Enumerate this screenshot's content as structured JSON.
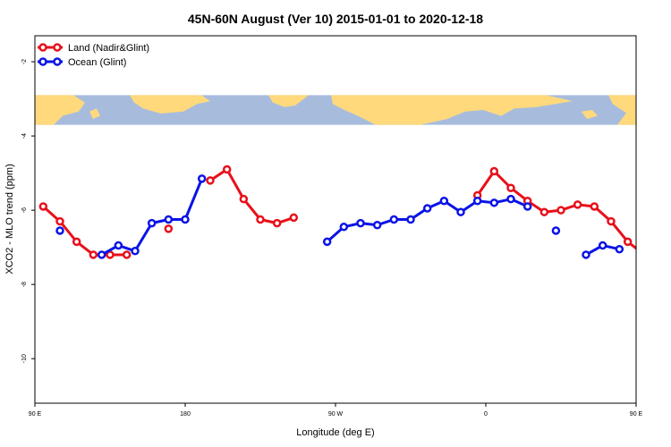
{
  "chart_data": {
    "type": "line",
    "title": "45N-60N August (Ver 10)   2015-01-01 to 2020-12-18",
    "xlabel": "Longitude (deg E)",
    "ylabel": "XCO2 - MLO trend (ppm)",
    "xlim": [
      90,
      450
    ],
    "ylim": [
      -11.2,
      -1.3
    ],
    "x_ticks": [
      {
        "value": 90,
        "label": "90 E"
      },
      {
        "value": 180,
        "label": "180"
      },
      {
        "value": 270,
        "label": "90 W"
      },
      {
        "value": 360,
        "label": "0"
      },
      {
        "value": 450,
        "label": "90 E"
      },
      {
        "value": 540,
        "label": "180"
      }
    ],
    "y_ticks": [
      {
        "value": -2,
        "label": "-2"
      },
      {
        "value": -4,
        "label": "-4"
      },
      {
        "value": -6,
        "label": "-6"
      },
      {
        "value": -8,
        "label": "-8"
      },
      {
        "value": -10,
        "label": "-10"
      }
    ],
    "map_band": {
      "y_top": -2.9,
      "y_bottom": -3.7,
      "ocean_color": "#a7bcdd",
      "land_color": "#ffd97c"
    },
    "legend": {
      "position": "top-left"
    },
    "series": [
      {
        "name": "Land (Nadir&Glint)",
        "color": "#e8101a",
        "segments": [
          [
            [
              95,
              -5.9
            ],
            [
              105,
              -6.3
            ],
            [
              115,
              -6.85
            ],
            [
              125,
              -7.2
            ],
            [
              135,
              -7.2
            ],
            [
              145,
              -7.2
            ]
          ],
          [
            [
              170,
              -6.5
            ]
          ],
          [
            [
              195,
              -5.2
            ],
            [
              205,
              -4.9
            ],
            [
              215,
              -5.7
            ],
            [
              225,
              -6.25
            ],
            [
              235,
              -6.35
            ],
            [
              245,
              -6.2
            ]
          ],
          [
            [
              355,
              -5.6
            ],
            [
              365,
              -4.95
            ],
            [
              375,
              -5.4
            ],
            [
              385,
              -5.75
            ],
            [
              395,
              -6.05
            ],
            [
              405,
              -6.0
            ],
            [
              415,
              -5.85
            ],
            [
              425,
              -5.9
            ],
            [
              435,
              -6.3
            ],
            [
              445,
              -6.85
            ],
            [
              455,
              -7.2
            ],
            [
              465,
              -7.2
            ]
          ]
        ]
      },
      {
        "name": "Ocean (Glint)",
        "color": "#0a14e6",
        "segments": [
          [
            [
              105,
              -6.55
            ]
          ],
          [
            [
              130,
              -7.2
            ],
            [
              140,
              -6.95
            ],
            [
              150,
              -7.1
            ],
            [
              160,
              -6.35
            ],
            [
              170,
              -6.25
            ],
            [
              180,
              -6.25
            ],
            [
              190,
              -5.15
            ]
          ],
          [
            [
              265,
              -6.85
            ],
            [
              275,
              -6.45
            ],
            [
              285,
              -6.35
            ],
            [
              295,
              -6.4
            ],
            [
              305,
              -6.25
            ],
            [
              315,
              -6.25
            ],
            [
              325,
              -5.95
            ],
            [
              335,
              -5.75
            ],
            [
              345,
              -6.05
            ],
            [
              355,
              -5.75
            ],
            [
              365,
              -5.8
            ],
            [
              375,
              -5.7
            ],
            [
              385,
              -5.9
            ]
          ],
          [
            [
              402,
              -6.55
            ]
          ],
          [
            [
              420,
              -7.2
            ],
            [
              430,
              -6.95
            ],
            [
              440,
              -7.05
            ]
          ]
        ]
      }
    ]
  }
}
